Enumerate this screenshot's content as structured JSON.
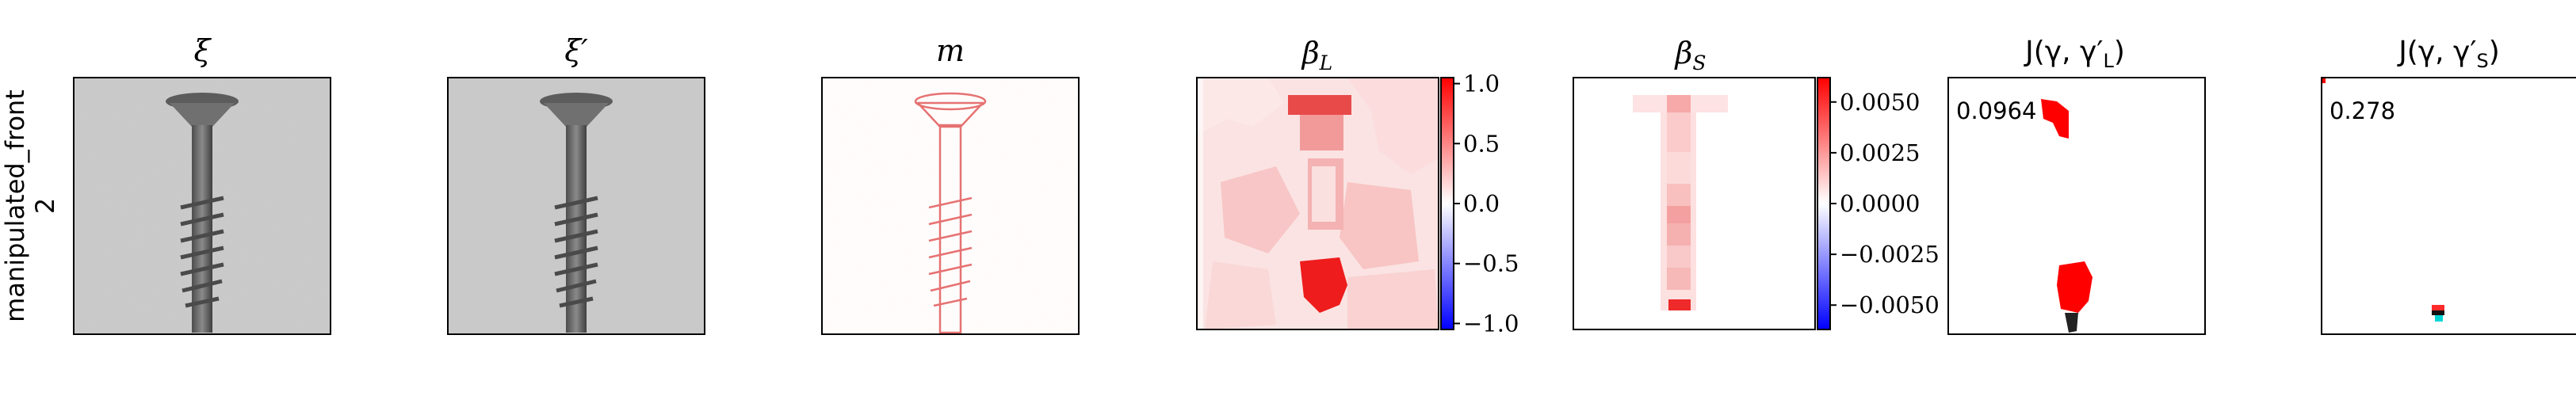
{
  "row_label": {
    "line1": "manipulated_front",
    "line2": "2"
  },
  "panels": [
    {
      "title": "ξ"
    },
    {
      "title": "ξ′"
    },
    {
      "title": "m"
    },
    {
      "title": "β",
      "sub": "L"
    },
    {
      "title": "β",
      "sub": "S"
    },
    {
      "title": "J(γ, γ′",
      "sub": "L",
      "close": ")"
    },
    {
      "title": "J(γ, γ′",
      "sub": "S",
      "close": ")"
    }
  ],
  "colorbar_L": {
    "ticks": [
      "1.0",
      "0.5",
      "0.0",
      "−0.5",
      "−1.0"
    ],
    "values": [
      1.0,
      0.5,
      0.0,
      -0.5,
      -1.0
    ],
    "range": [
      -1.05,
      1.05
    ]
  },
  "colorbar_S": {
    "ticks": [
      "0.0050",
      "0.0025",
      "0.0000",
      "−0.0025",
      "−0.0050"
    ],
    "values": [
      0.005,
      0.0025,
      0.0,
      -0.0025,
      -0.005
    ],
    "range": [
      -0.0062,
      0.0062
    ]
  },
  "annotations": {
    "jaccard_L": "0.0964",
    "jaccard_S": "0.278"
  },
  "colors": {
    "positive": "#ff0000",
    "negative": "#0000ff",
    "neutral": "#ffffff",
    "screw": "#6f6f6f",
    "background_gray": "#c8c8c8"
  }
}
